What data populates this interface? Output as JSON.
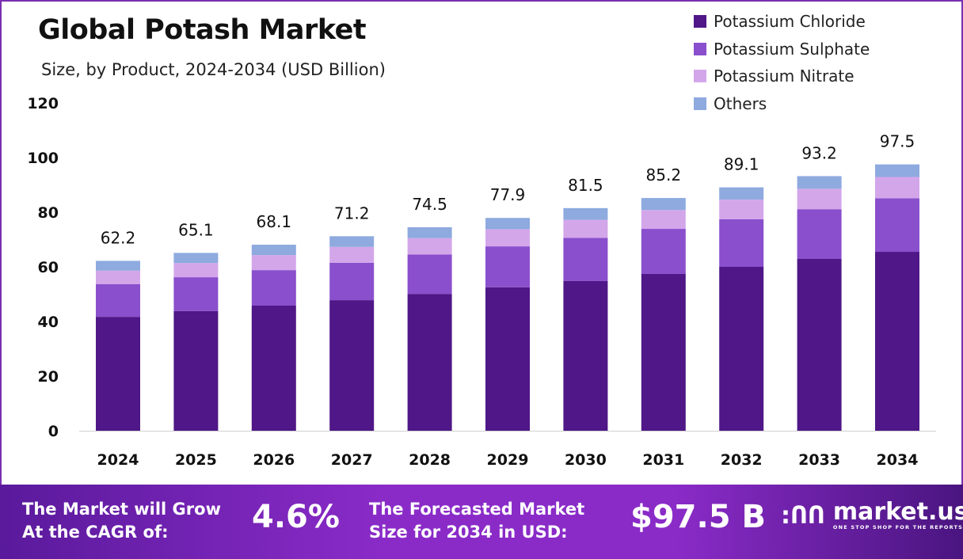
{
  "header": {
    "title": "Global Potash Market",
    "subtitle": "Size, by Product, 2024-2034 (USD Billion)"
  },
  "chart_data": {
    "type": "bar",
    "stacked": true,
    "title": "Global Potash Market",
    "subtitle": "Size, by Product, 2024-2034 (USD Billion)",
    "categories": [
      "2024",
      "2025",
      "2026",
      "2027",
      "2028",
      "2029",
      "2030",
      "2031",
      "2032",
      "2033",
      "2034"
    ],
    "series": [
      {
        "name": "Potassium Chloride",
        "color": "#4f1787",
        "values": [
          41.7,
          43.8,
          45.8,
          47.8,
          50.1,
          52.5,
          54.8,
          57.4,
          60.0,
          62.9,
          65.5
        ]
      },
      {
        "name": "Potassium Sulphate",
        "color": "#8a4fcc",
        "values": [
          12.0,
          12.4,
          13.0,
          13.7,
          14.4,
          15.0,
          15.8,
          16.5,
          17.4,
          18.2,
          19.6
        ]
      },
      {
        "name": "Potassium Nitrate",
        "color": "#d3a6ea",
        "values": [
          4.9,
          5.2,
          5.5,
          5.8,
          6.0,
          6.3,
          6.6,
          6.9,
          7.2,
          7.5,
          7.8
        ]
      },
      {
        "name": "Others",
        "color": "#8eaadf",
        "values": [
          3.6,
          3.7,
          3.8,
          3.9,
          4.0,
          4.1,
          4.3,
          4.4,
          4.5,
          4.6,
          4.6
        ]
      }
    ],
    "totals": [
      "62.2",
      "65.1",
      "68.1",
      "71.2",
      "74.5",
      "77.9",
      "81.5",
      "85.2",
      "89.1",
      "93.2",
      "97.5"
    ],
    "yticks": [
      "0",
      "20",
      "40",
      "60",
      "80",
      "100",
      "120"
    ],
    "ylim": [
      0,
      120
    ],
    "grid": false,
    "legend_position": "top-right"
  },
  "footer": {
    "cagr_label": [
      "The Market will Grow",
      "At the CAGR of:"
    ],
    "cagr_value": "4.6%",
    "forecast_label": [
      "The Forecasted Market",
      "Size for 2034 in USD:"
    ],
    "forecast_value": "$97.5 B",
    "logo_name": "market.us",
    "logo_tagline": "ONE STOP SHOP FOR THE REPORTS"
  }
}
